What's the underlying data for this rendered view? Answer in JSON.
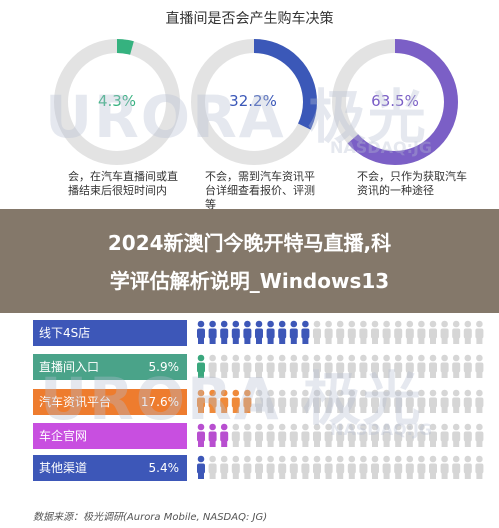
{
  "title": "直播间是否会产生购车决策",
  "chart_data": [
    {
      "type": "pie",
      "title": "直播间是否会产生购车决策",
      "slices": [
        {
          "label": "会，在汽车直播间或直播结束后很短时间内",
          "value": 4.3,
          "display": "4.3%",
          "color": "#35b27f"
        },
        {
          "label": "不会，需到汽车资讯平台详细查看报价、评测等",
          "value": 32.2,
          "display": "32.2%",
          "color": "#3b58b8"
        },
        {
          "label": "不会，只作为获取汽车资讯的一种途径",
          "value": 63.5,
          "display": "63.5%",
          "color": "#7b5fc6"
        }
      ]
    },
    {
      "type": "bar",
      "categories": [
        "线下4S店",
        "直播间入口",
        "汽车资讯平台",
        "车企官网",
        "其他渠道"
      ],
      "values": [
        null,
        5.9,
        17.6,
        null,
        5.4
      ],
      "labels": [
        "",
        "5.9%",
        "17.6%",
        "",
        "5.4%"
      ],
      "row_colors": [
        "#3d57b8",
        "#3aa77d",
        "#ef8a3a",
        "#b84fd0",
        "#3d57b8"
      ],
      "label_bg": [
        "#3d57b8",
        "#4aa389",
        "#ee7c2e",
        "#c84fe0",
        "#3d57b8"
      ]
    }
  ],
  "donut_track_color": "#e3e3e3",
  "icon_gray": "#d6d6d6",
  "banner": {
    "line1": "2024新澳门今晚开特马直播,科",
    "line2": "学评估解析说明_Windows13"
  },
  "source": "数据来源：极光调研(Aurora Mobile, NASDAQ: JG)",
  "watermark": {
    "brand": "URORA 极光",
    "sub": "NASDAQ:JG"
  }
}
